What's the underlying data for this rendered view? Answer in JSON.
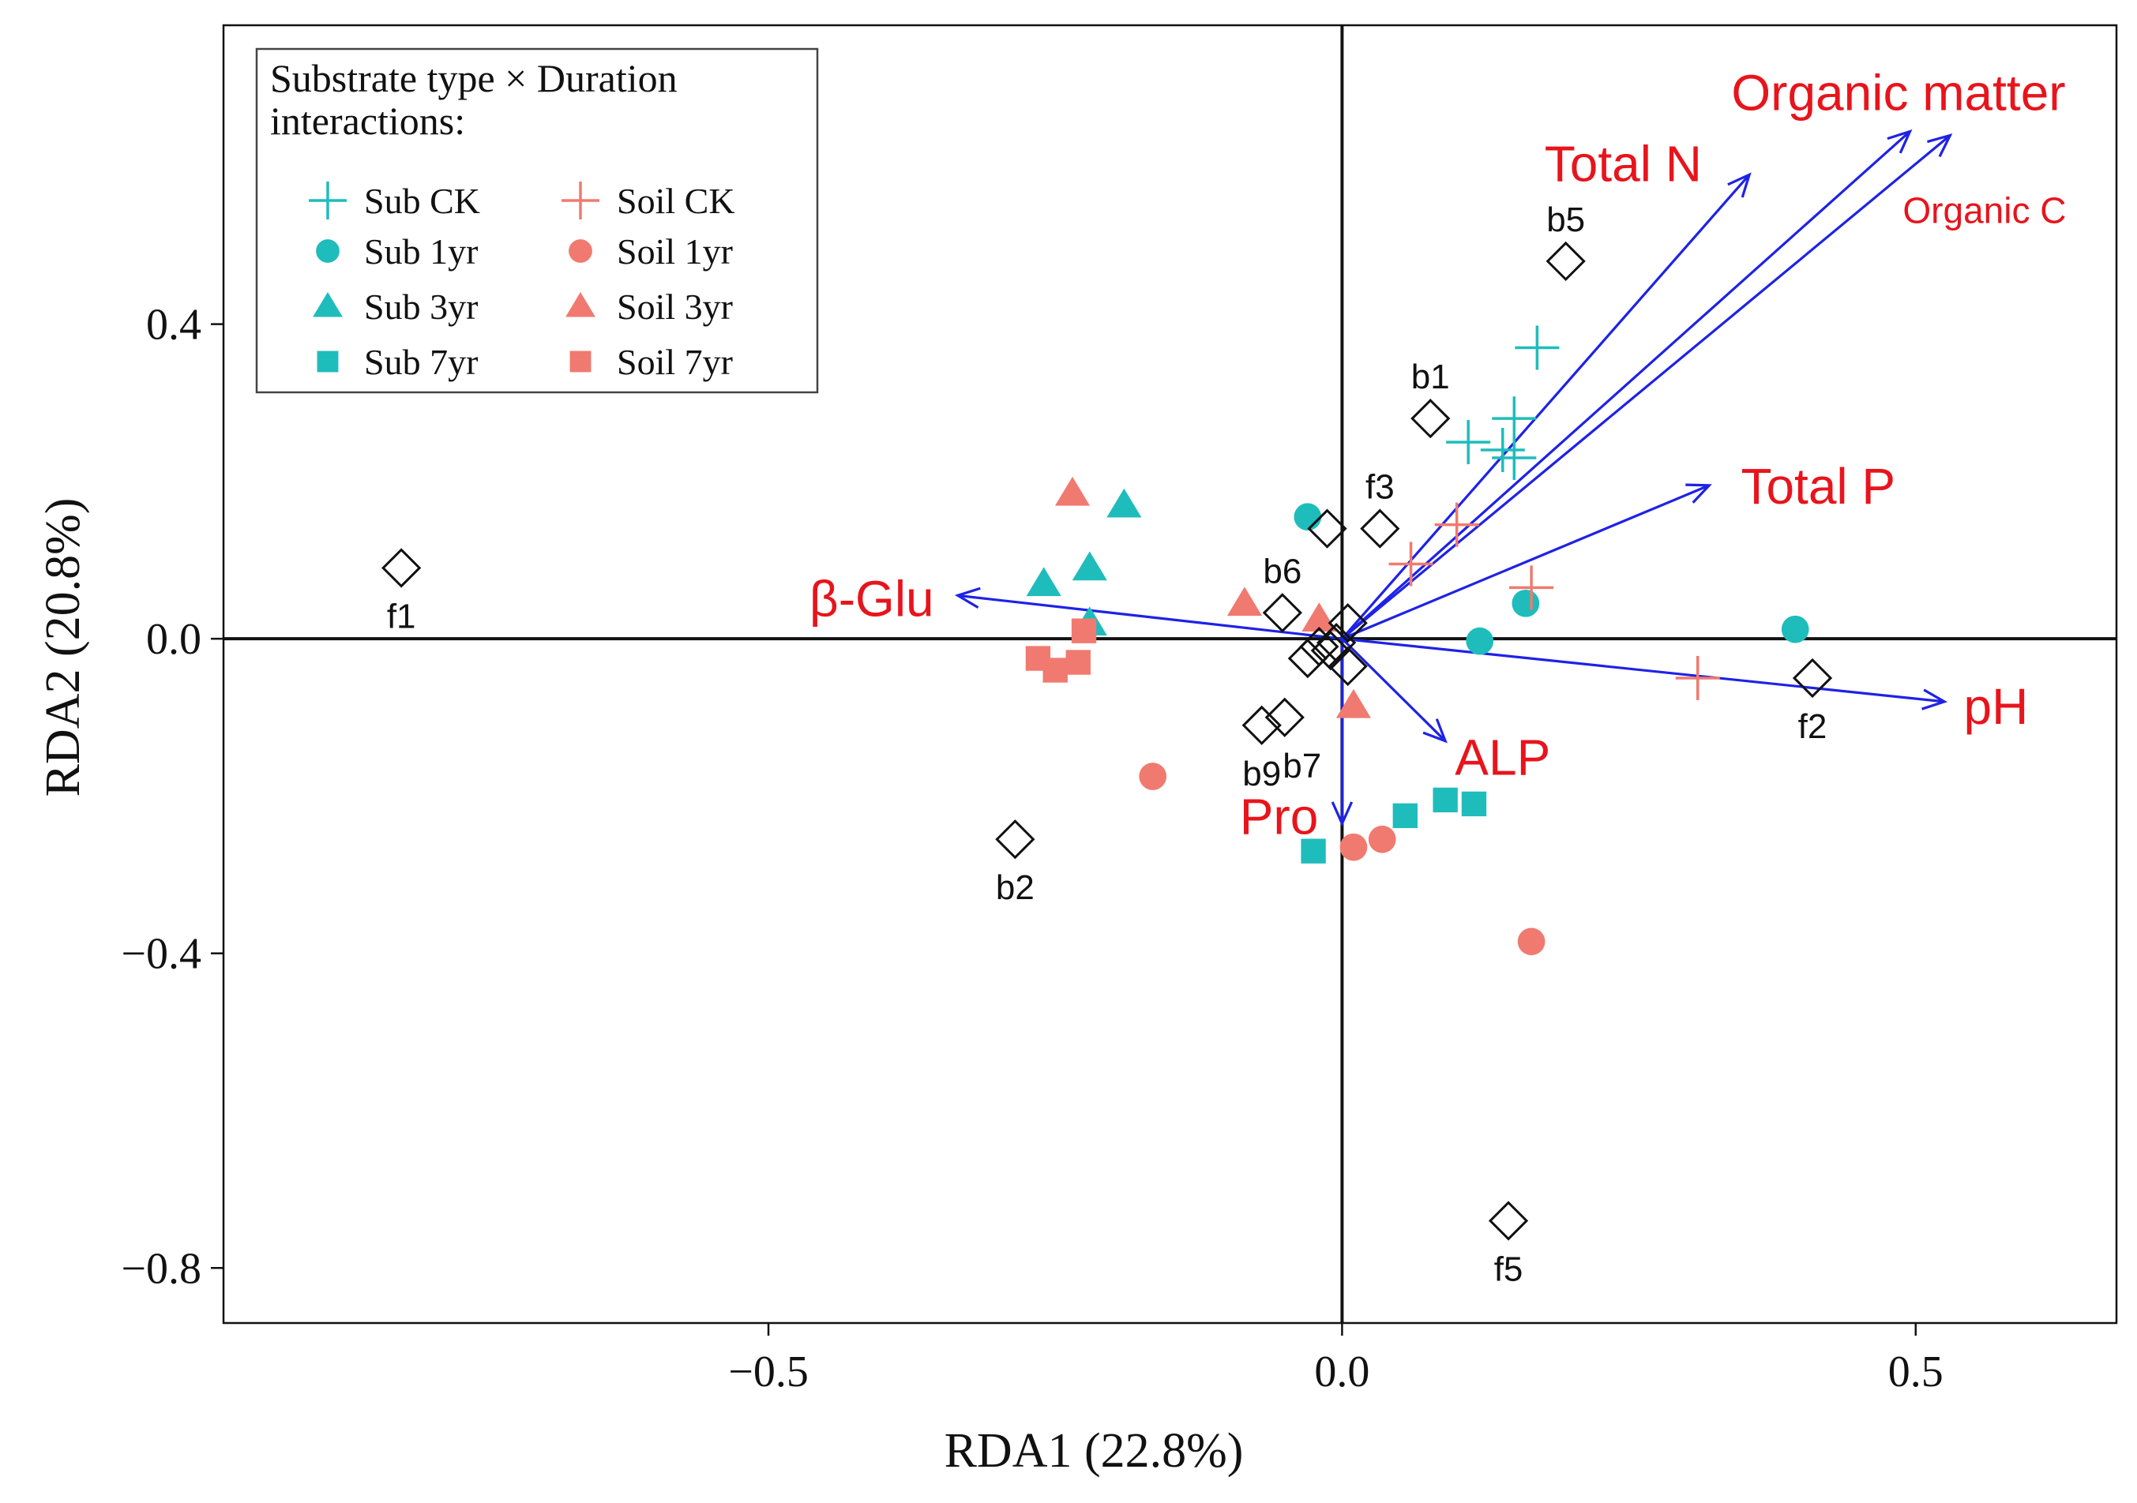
{
  "chart_data": {
    "type": "scatter",
    "subtype": "RDA triplot",
    "xlabel": "RDA1 (22.8%)",
    "ylabel": "RDA2 (20.8%)",
    "xlim": [
      -0.975,
      0.675
    ],
    "ylim": [
      -0.87,
      0.78
    ],
    "x_ticks": [
      -0.5,
      0.0,
      0.5
    ],
    "x_tick_labels": [
      "−0.5",
      "0.0",
      "0.5"
    ],
    "y_ticks": [
      0.4,
      0.0,
      -0.4,
      -0.8
    ],
    "y_tick_labels": [
      "0.4",
      "0.0",
      "−0.4",
      "−0.8"
    ],
    "grid": false,
    "colors": {
      "sub": "#1fbcbc",
      "soil": "#f07a70",
      "arrow": "#1e22e6",
      "env_label": "#e8141c",
      "axis": "#111111"
    },
    "legend": {
      "title_line1": "Substrate type × Duration",
      "title_line2": "interactions:",
      "position": "top-left",
      "entries": [
        {
          "label": "Sub CK",
          "shape": "plus",
          "group": "sub"
        },
        {
          "label": "Sub 1yr",
          "shape": "circle",
          "group": "sub"
        },
        {
          "label": "Sub 3yr",
          "shape": "triangle",
          "group": "sub"
        },
        {
          "label": "Sub 7yr",
          "shape": "square",
          "group": "sub"
        },
        {
          "label": "Soil CK",
          "shape": "plus",
          "group": "soil"
        },
        {
          "label": "Soil 1yr",
          "shape": "circle",
          "group": "soil"
        },
        {
          "label": "Soil 3yr",
          "shape": "triangle",
          "group": "soil"
        },
        {
          "label": "Soil 7yr",
          "shape": "square",
          "group": "soil"
        }
      ]
    },
    "series": [
      {
        "name": "Sub CK",
        "shape": "plus",
        "group": "sub",
        "points": [
          [
            0.17,
            0.37
          ],
          [
            0.11,
            0.25
          ],
          [
            0.15,
            0.28
          ],
          [
            0.14,
            0.24
          ],
          [
            0.15,
            0.23
          ]
        ]
      },
      {
        "name": "Sub 1yr",
        "shape": "circle",
        "group": "sub",
        "points": [
          [
            -0.03,
            0.155
          ],
          [
            0.16,
            0.045
          ],
          [
            0.12,
            -0.003
          ],
          [
            0.395,
            0.012
          ]
        ]
      },
      {
        "name": "Sub 3yr",
        "shape": "triangle",
        "group": "sub",
        "points": [
          [
            -0.19,
            0.17
          ],
          [
            -0.26,
            0.07
          ],
          [
            -0.22,
            0.09
          ],
          [
            -0.22,
            0.02
          ]
        ]
      },
      {
        "name": "Sub 7yr",
        "shape": "square",
        "group": "sub",
        "points": [
          [
            0.09,
            -0.205
          ],
          [
            0.115,
            -0.21
          ],
          [
            0.055,
            -0.225
          ],
          [
            -0.025,
            -0.27
          ]
        ]
      },
      {
        "name": "Soil CK",
        "shape": "plus",
        "group": "soil",
        "points": [
          [
            0.06,
            0.095
          ],
          [
            0.1,
            0.145
          ],
          [
            0.165,
            0.065
          ],
          [
            0.31,
            -0.05
          ]
        ]
      },
      {
        "name": "Soil 1yr",
        "shape": "circle",
        "group": "soil",
        "points": [
          [
            -0.165,
            -0.175
          ],
          [
            0.01,
            -0.265
          ],
          [
            0.035,
            -0.255
          ],
          [
            0.165,
            -0.385
          ]
        ]
      },
      {
        "name": "Soil 3yr",
        "shape": "triangle",
        "group": "soil",
        "points": [
          [
            -0.235,
            0.185
          ],
          [
            -0.085,
            0.045
          ],
          [
            -0.02,
            0.025
          ],
          [
            0.01,
            -0.085
          ]
        ]
      },
      {
        "name": "Soil 7yr",
        "shape": "square",
        "group": "soil",
        "points": [
          [
            -0.265,
            -0.025
          ],
          [
            -0.25,
            -0.04
          ],
          [
            -0.23,
            -0.03
          ],
          [
            -0.225,
            0.01
          ]
        ]
      }
    ],
    "species": [
      {
        "name": "b5",
        "x": 0.195,
        "y": 0.48,
        "label_pos": "above"
      },
      {
        "name": "b1",
        "x": 0.077,
        "y": 0.28,
        "label_pos": "above"
      },
      {
        "name": "f3",
        "x": 0.033,
        "y": 0.14,
        "label_pos": "above"
      },
      {
        "name": "",
        "x": -0.013,
        "y": 0.14,
        "label_pos": "none"
      },
      {
        "name": "f1",
        "x": -0.82,
        "y": 0.09,
        "label_pos": "below"
      },
      {
        "name": "b6",
        "x": -0.052,
        "y": 0.033,
        "label_pos": "above"
      },
      {
        "name": "",
        "x": 0.005,
        "y": 0.02,
        "label_pos": "none"
      },
      {
        "name": "",
        "x": -0.02,
        "y": -0.01,
        "label_pos": "none"
      },
      {
        "name": "",
        "x": -0.005,
        "y": -0.005,
        "label_pos": "none"
      },
      {
        "name": "",
        "x": 0.005,
        "y": -0.035,
        "label_pos": "none"
      },
      {
        "name": "",
        "x": -0.03,
        "y": -0.025,
        "label_pos": "none"
      },
      {
        "name": "",
        "x": -0.01,
        "y": -0.015,
        "label_pos": "none"
      },
      {
        "name": "b9",
        "x": -0.07,
        "y": -0.11,
        "label_pos": "below"
      },
      {
        "name": "b7",
        "x": -0.05,
        "y": -0.1,
        "label_pos": "below-right"
      },
      {
        "name": "b2",
        "x": -0.285,
        "y": -0.255,
        "label_pos": "below"
      },
      {
        "name": "f2",
        "x": 0.41,
        "y": -0.05,
        "label_pos": "below"
      },
      {
        "name": "f5",
        "x": 0.145,
        "y": -0.74,
        "label_pos": "below"
      }
    ],
    "env_vectors": [
      {
        "name": "Organic matter",
        "x": 0.53,
        "y": 0.64,
        "label_x": 0.485,
        "label_y": 0.695,
        "size": "large"
      },
      {
        "name": "Organic C",
        "x": 0.495,
        "y": 0.645,
        "label_x": 0.56,
        "label_y": 0.545,
        "size": "small"
      },
      {
        "name": "Total N",
        "x": 0.355,
        "y": 0.59,
        "label_x": 0.245,
        "label_y": 0.605,
        "size": "large"
      },
      {
        "name": "Total P",
        "x": 0.32,
        "y": 0.195,
        "label_x": 0.415,
        "label_y": 0.195,
        "size": "large"
      },
      {
        "name": "pH",
        "x": 0.525,
        "y": -0.08,
        "label_x": 0.57,
        "label_y": -0.085,
        "size": "large"
      },
      {
        "name": "β-Glu",
        "x": -0.335,
        "y": 0.055,
        "label_x": -0.41,
        "label_y": 0.052,
        "size": "large"
      },
      {
        "name": "ALP",
        "x": 0.09,
        "y": -0.13,
        "label_x": 0.14,
        "label_y": -0.15,
        "size": "large"
      },
      {
        "name": "Pro",
        "x": 0.0,
        "y": -0.235,
        "label_x": -0.055,
        "label_y": -0.225,
        "size": "large"
      }
    ]
  }
}
